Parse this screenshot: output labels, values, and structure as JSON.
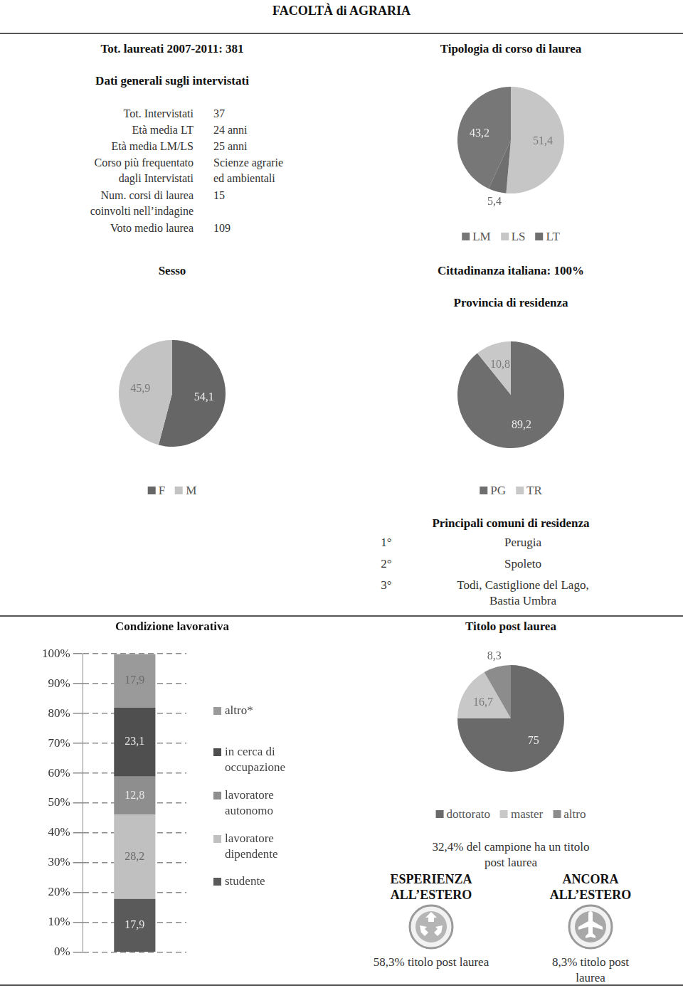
{
  "header": {
    "title": "FACOLTÀ di AGRARIA",
    "total": "Tot. laureati 2007-2011: 381"
  },
  "general": {
    "title": "Dati generali sugli intervistati",
    "rows": [
      [
        "Tot. Intervistati",
        "37"
      ],
      [
        "Età media LT",
        "24 anni"
      ],
      [
        "Età media LM/LS",
        "25 anni"
      ],
      [
        "Corso più frequentato\ndagli Intervistati",
        "Scienze agrarie\ned ambientali"
      ],
      [
        "Num. corsi di laurea\ncoinvolti nell’indagine",
        "15"
      ],
      [
        "Voto medio laurea",
        "109"
      ]
    ]
  },
  "texts": {
    "cittadinanza": "Cittadinanza italiana: 100%",
    "comuni": {
      "title": "Principali comuni di residenza",
      "rows": [
        [
          "1°",
          "Perugia"
        ],
        [
          "2°",
          "Spoleto"
        ],
        [
          "3°",
          "Todi, Castiglione del Lago, Bastia Umbra"
        ]
      ]
    },
    "post_laurea_note": "32,4% del campione ha un titolo post laurea",
    "estero": [
      {
        "title": "ESPERIENZA\nALL’ESTERO",
        "text": "58,3% titolo post laurea"
      },
      {
        "title": "ANCORA\nALL’ESTERO",
        "text": "8,3% titolo post laurea"
      }
    ]
  },
  "chart_data": [
    {
      "type": "pie",
      "title": "Tipologia di corso di laurea",
      "categories": [
        "LM",
        "LS",
        "LT"
      ],
      "values": [
        43.2,
        51.4,
        5.4
      ],
      "value_labels": [
        "43,2",
        "51,4",
        "5,4"
      ],
      "colors": [
        "#777777",
        "#c6c6c6",
        "#6f6f6f"
      ],
      "data_labels": true,
      "legend": "bottom"
    },
    {
      "type": "pie",
      "title": "Sesso",
      "categories": [
        "F",
        "M"
      ],
      "values": [
        54.1,
        45.9
      ],
      "value_labels": [
        "54,1",
        "45,9"
      ],
      "colors": [
        "#666666",
        "#c3c3c3"
      ],
      "data_labels": true,
      "legend": "bottom"
    },
    {
      "type": "pie",
      "title": "Provincia di residenza",
      "categories": [
        "PG",
        "TR"
      ],
      "values": [
        89.2,
        10.8
      ],
      "value_labels": [
        "89,2",
        "10,8"
      ],
      "colors": [
        "#6e6e6e",
        "#c8c8c8"
      ],
      "data_labels": true,
      "legend": "bottom"
    },
    {
      "type": "pie",
      "title": "Titolo post laurea",
      "categories": [
        "dottorato",
        "master",
        "altro"
      ],
      "values": [
        75,
        16.7,
        8.3
      ],
      "value_labels": [
        "75",
        "16,7",
        "8,3"
      ],
      "colors": [
        "#6a6a6a",
        "#c8c8c8",
        "#8c8c8c"
      ],
      "data_labels": true,
      "legend": "bottom"
    },
    {
      "type": "bar",
      "title": "Condizione lavorativa",
      "categories": [
        null
      ],
      "series": [
        {
          "name": "studente",
          "color": "#5a5a5a",
          "values": [
            17.9
          ],
          "value_labels": [
            "17,9"
          ]
        },
        {
          "name": "lavoratore dipendente",
          "color": "#c0c0c0",
          "values": [
            28.2
          ],
          "value_labels": [
            "28,2"
          ]
        },
        {
          "name": "lavoratore autonomo",
          "color": "#8e8e8e",
          "values": [
            12.8
          ],
          "value_labels": [
            "12,8"
          ]
        },
        {
          "name": "in cerca di occupazione",
          "color": "#4f4f4f",
          "values": [
            23.1
          ],
          "value_labels": [
            "23,1"
          ]
        },
        {
          "name": "altro*",
          "color": "#9a9a9a",
          "values": [
            17.9
          ],
          "value_labels": [
            "17,9"
          ]
        }
      ],
      "ylim": [
        0,
        100
      ],
      "yticks": [
        {
          "value": 0,
          "label": "0%"
        },
        {
          "value": 10,
          "label": "10%"
        },
        {
          "value": 20,
          "label": "20%"
        },
        {
          "value": 30,
          "label": "30%"
        },
        {
          "value": 40,
          "label": "40%"
        },
        {
          "value": 50,
          "label": "50%"
        },
        {
          "value": 60,
          "label": "60%"
        },
        {
          "value": 70,
          "label": "70%"
        },
        {
          "value": 80,
          "label": "80%"
        },
        {
          "value": 90,
          "label": "90%"
        },
        {
          "value": 100,
          "label": "100%"
        }
      ],
      "stacked": true,
      "grid": true,
      "data_labels": true,
      "tick_labels": "y",
      "legend": "right"
    }
  ]
}
